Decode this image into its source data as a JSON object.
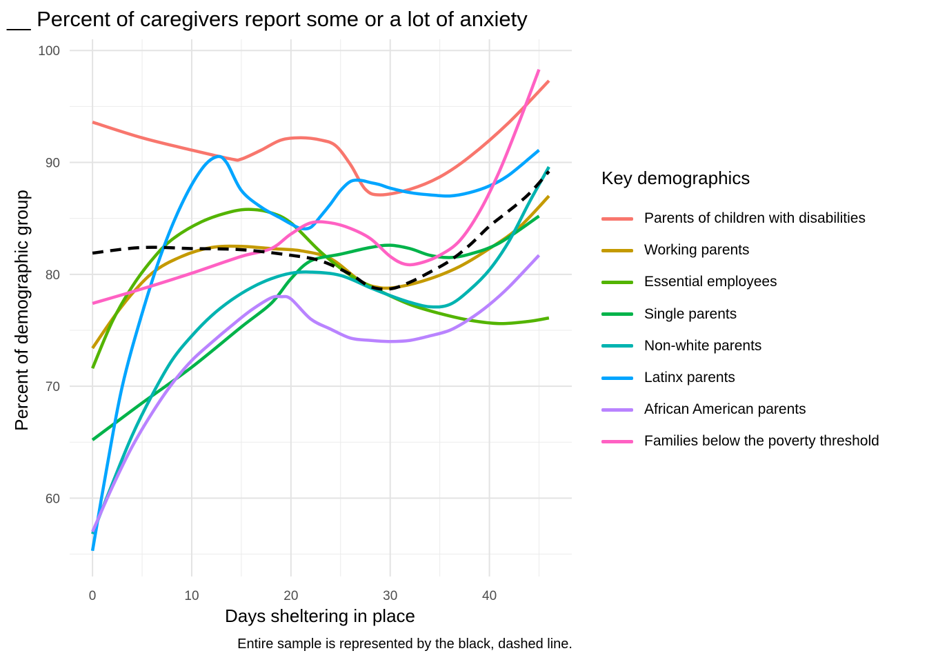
{
  "title": "__ Percent of caregivers report some or a lot of anxiety",
  "caption": "Entire sample is represented by the black, dashed line.",
  "chart_data": {
    "type": "line",
    "title": "__ Percent of caregivers report some or a lot of anxiety",
    "xlabel": "Days sheltering in place",
    "ylabel": "Percent of demographic group",
    "xlim": [
      -2.3,
      48.3
    ],
    "ylim": [
      53,
      101
    ],
    "x_ticks": [
      0,
      10,
      20,
      30,
      40
    ],
    "y_ticks": [
      60,
      70,
      80,
      90,
      100
    ],
    "grid": true,
    "legend_title": "Key demographics",
    "legend_position": "right",
    "series": [
      {
        "name": "Parents of children with disabilities",
        "color": "#F8766D",
        "x": [
          0,
          5,
          10,
          14,
          15,
          17,
          19,
          21,
          23,
          24.5,
          26,
          27.5,
          29,
          32,
          35,
          38,
          42,
          46
        ],
        "y": [
          93.6,
          92.2,
          91.1,
          90.3,
          90.3,
          91.1,
          92.0,
          92.2,
          92.0,
          91.5,
          89.8,
          87.6,
          87.1,
          87.6,
          88.7,
          90.5,
          93.6,
          97.3
        ]
      },
      {
        "name": "Working parents",
        "color": "#C49A00",
        "x": [
          0,
          3,
          6,
          9,
          12,
          15,
          18,
          21,
          24,
          27,
          29,
          31,
          34,
          37,
          40,
          43,
          46
        ],
        "y": [
          73.4,
          77.2,
          80.1,
          81.6,
          82.4,
          82.5,
          82.3,
          82.1,
          81.4,
          79.4,
          78.8,
          78.9,
          79.6,
          80.7,
          82.3,
          84.2,
          87.0
        ]
      },
      {
        "name": "Essential employees",
        "color": "#53B400",
        "x": [
          0,
          2,
          4,
          6,
          8,
          11,
          14,
          16,
          18,
          20,
          23,
          26,
          29,
          32,
          35,
          38,
          41,
          44,
          46
        ],
        "y": [
          71.6,
          75.8,
          78.9,
          81.3,
          83.1,
          84.7,
          85.6,
          85.8,
          85.5,
          84.6,
          82.0,
          79.9,
          78.5,
          77.3,
          76.5,
          75.9,
          75.6,
          75.8,
          76.1
        ]
      },
      {
        "name": "Single parents",
        "color": "#00B34A",
        "x": [
          0,
          5,
          10,
          15,
          18,
          20,
          22,
          25,
          28,
          30,
          32,
          34,
          36,
          38,
          41,
          45
        ],
        "y": [
          65.2,
          68.5,
          71.7,
          75.3,
          77.4,
          79.6,
          81.2,
          81.8,
          82.4,
          82.6,
          82.3,
          81.7,
          81.5,
          81.8,
          82.8,
          85.2
        ]
      },
      {
        "name": "Non-white parents",
        "color": "#00B3B0",
        "x": [
          0,
          2,
          4,
          6,
          8,
          10,
          12,
          14,
          16,
          18,
          20,
          22,
          25,
          28,
          30,
          32,
          34,
          36,
          38,
          40,
          42,
          44,
          46
        ],
        "y": [
          56.8,
          61.3,
          65.6,
          69.2,
          72.3,
          74.5,
          76.3,
          77.7,
          78.8,
          79.6,
          80.1,
          80.2,
          79.9,
          78.8,
          78.1,
          77.5,
          77.1,
          77.3,
          78.6,
          80.4,
          83.0,
          86.4,
          89.6
        ]
      },
      {
        "name": "Latinx parents",
        "color": "#00A5FF",
        "x": [
          0,
          1.5,
          3,
          5,
          7,
          9,
          11,
          12.5,
          13.5,
          15,
          17,
          19,
          20,
          21,
          22,
          23,
          24,
          25,
          26,
          27,
          28,
          29,
          30,
          32,
          34,
          36,
          38,
          40,
          42,
          45
        ],
        "y": [
          55.3,
          63.0,
          70.0,
          76.5,
          82.0,
          86.3,
          89.4,
          90.5,
          90.0,
          87.5,
          86.0,
          85.0,
          84.5,
          84.1,
          84.2,
          85.2,
          86.3,
          87.5,
          88.3,
          88.4,
          88.2,
          88.0,
          87.7,
          87.3,
          87.1,
          87.0,
          87.3,
          87.9,
          88.9,
          91.1
        ]
      },
      {
        "name": "African American parents",
        "color": "#B983FF",
        "x": [
          0,
          2,
          4,
          6,
          8,
          10,
          12,
          14,
          16,
          18,
          19,
          20,
          22,
          24,
          26,
          28,
          30,
          32,
          34,
          36,
          38,
          40,
          42,
          45
        ],
        "y": [
          57.0,
          61.0,
          64.6,
          67.6,
          70.2,
          72.3,
          73.9,
          75.4,
          76.8,
          77.9,
          78.0,
          77.8,
          76.0,
          75.1,
          74.3,
          74.1,
          74.0,
          74.1,
          74.5,
          75.0,
          76.0,
          77.3,
          78.9,
          81.7
        ]
      },
      {
        "name": "Families below the poverty threshold",
        "color": "#FF61C3",
        "x": [
          0,
          5,
          10,
          15,
          18,
          20,
          22,
          24,
          26,
          28,
          30,
          31.5,
          33,
          35,
          37,
          39,
          41,
          43,
          45
        ],
        "y": [
          77.4,
          78.7,
          80.1,
          81.6,
          82.3,
          83.6,
          84.6,
          84.6,
          84.1,
          83.2,
          81.6,
          80.9,
          81.0,
          81.7,
          83.0,
          85.6,
          89.2,
          93.6,
          98.3
        ]
      },
      {
        "name": "",
        "color": "#000000",
        "dashed": true,
        "x": [
          0,
          5,
          10,
          15,
          20,
          23,
          26,
          28,
          30,
          32,
          34,
          36,
          38,
          40,
          42,
          44,
          46
        ],
        "y": [
          81.9,
          82.4,
          82.3,
          82.2,
          81.7,
          81.2,
          80.0,
          78.9,
          78.7,
          79.3,
          80.2,
          81.2,
          82.6,
          84.3,
          85.7,
          87.2,
          89.2
        ]
      }
    ]
  }
}
